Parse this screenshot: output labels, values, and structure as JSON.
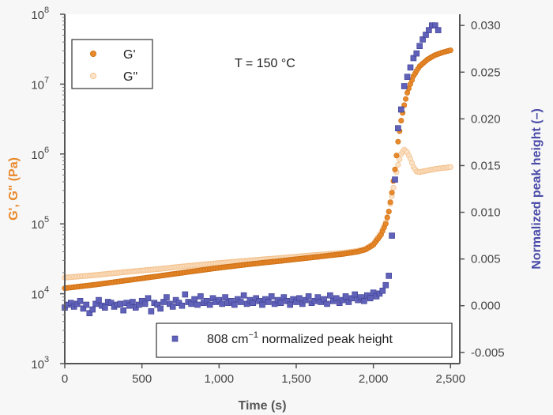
{
  "chart_data": {
    "type": "scatter",
    "title": "",
    "annotation": "T = 150 °C",
    "xlabel": "Time (s)",
    "ylabel_left": "G', G\" (Pa)",
    "ylabel_right": "Normalized peak height (–)",
    "xlim": [
      0,
      2560
    ],
    "xticks": [
      0,
      500,
      1000,
      1500,
      2000,
      2500
    ],
    "xtick_labels": [
      "0",
      "500",
      "1,000",
      "1,500",
      "2,000",
      "2,500"
    ],
    "ylim_left_log10": [
      3,
      8
    ],
    "yticks_left": [
      {
        "base": "10",
        "exp": "3"
      },
      {
        "base": "10",
        "exp": "4"
      },
      {
        "base": "10",
        "exp": "5"
      },
      {
        "base": "10",
        "exp": "6"
      },
      {
        "base": "10",
        "exp": "7"
      },
      {
        "base": "10",
        "exp": "8"
      }
    ],
    "ylim_right": [
      -0.0062,
      0.0312
    ],
    "yticks_right": [
      -0.005,
      0.0,
      0.005,
      0.01,
      0.015,
      0.02,
      0.025,
      0.03
    ],
    "ytick_labels_right": [
      "-0.005",
      "0.000",
      "0.005",
      "0.010",
      "0.015",
      "0.020",
      "0.025",
      "0.030"
    ],
    "colors": {
      "g_prime": "#e8892b",
      "g_double_prime": "#f3c08c",
      "peak": "#4a4ba8",
      "left_axis": "#e8892b",
      "right_axis": "#4a4ba8"
    },
    "legend_left": {
      "placement": "top-left",
      "entries": [
        "G'",
        "G\""
      ]
    },
    "legend_right": {
      "placement": "bottom-right",
      "label_main": "808 cm",
      "label_sup": "−1",
      "label_rest": " normalized peak height"
    },
    "series": [
      {
        "name": "G'",
        "axis": "left",
        "x": [
          0,
          200,
          400,
          600,
          800,
          1000,
          1200,
          1400,
          1600,
          1800,
          1900,
          1950,
          2000,
          2050,
          2080,
          2100,
          2120,
          2140,
          2160,
          2180,
          2200,
          2220,
          2240,
          2260,
          2280,
          2300,
          2350,
          2400,
          2450,
          2500
        ],
        "y": [
          12000,
          13500,
          15500,
          17800,
          20500,
          23500,
          26500,
          29500,
          33000,
          37000,
          40000,
          43000,
          50000,
          70000,
          100000,
          150000,
          280000,
          600000,
          1500000,
          3000000,
          5000000,
          7500000,
          10000000,
          13000000,
          15500000,
          18000000,
          22500000,
          26000000,
          28500000,
          30500000
        ]
      },
      {
        "name": "G\"",
        "axis": "left",
        "x": [
          0,
          200,
          400,
          600,
          800,
          1000,
          1200,
          1400,
          1600,
          1800,
          1900,
          1950,
          2000,
          2050,
          2080,
          2100,
          2120,
          2140,
          2160,
          2180,
          2200,
          2220,
          2240,
          2260,
          2280,
          2300,
          2350,
          2400,
          2450,
          2500
        ],
        "y": [
          17000,
          18500,
          20500,
          22500,
          25000,
          27500,
          30000,
          32500,
          35500,
          38500,
          41000,
          44000,
          52000,
          75000,
          105000,
          150000,
          250000,
          430000,
          700000,
          1000000,
          1150000,
          1050000,
          850000,
          650000,
          560000,
          550000,
          580000,
          610000,
          630000,
          650000
        ]
      },
      {
        "name": "808 cm-1 normalized peak height",
        "axis": "right",
        "x": [
          0,
          20,
          40,
          60,
          80,
          100,
          120,
          140,
          160,
          180,
          200,
          220,
          240,
          260,
          280,
          300,
          320,
          340,
          360,
          380,
          400,
          420,
          440,
          460,
          480,
          500,
          520,
          540,
          560,
          580,
          600,
          620,
          640,
          660,
          680,
          700,
          720,
          740,
          760,
          780,
          800,
          820,
          840,
          860,
          880,
          900,
          920,
          940,
          960,
          980,
          1000,
          1020,
          1040,
          1060,
          1080,
          1100,
          1120,
          1140,
          1160,
          1180,
          1200,
          1220,
          1240,
          1260,
          1280,
          1300,
          1320,
          1340,
          1360,
          1380,
          1400,
          1420,
          1440,
          1460,
          1480,
          1500,
          1520,
          1540,
          1560,
          1580,
          1600,
          1620,
          1640,
          1660,
          1680,
          1700,
          1720,
          1740,
          1760,
          1780,
          1800,
          1820,
          1840,
          1860,
          1880,
          1900,
          1920,
          1940,
          1960,
          1980,
          2000,
          2020,
          2040,
          2060,
          2080,
          2100,
          2120,
          2140,
          2160,
          2180,
          2200,
          2220,
          2240,
          2260,
          2280,
          2300,
          2320,
          2340,
          2360,
          2380,
          2400,
          2420
        ],
        "y": [
          -0.0002,
          0.0001,
          0.0003,
          -0.0001,
          0.0002,
          0.0005,
          -0.0003,
          0.0001,
          -0.0008,
          -0.0004,
          0.0002,
          0.0006,
          0.0,
          -0.0002,
          0.0004,
          0.0003,
          -0.0001,
          0.0001,
          0.0002,
          -0.0005,
          0.0003,
          0.0,
          0.0004,
          -0.0002,
          0.0001,
          0.0005,
          0.0002,
          0.0008,
          -0.0006,
          0.0003,
          0.0001,
          -0.0003,
          0.0004,
          0.0009,
          0.0002,
          -0.0001,
          0.0006,
          0.0003,
          0.0,
          0.0012,
          0.0004,
          0.0002,
          0.0007,
          0.0001,
          0.001,
          0.0003,
          0.0005,
          0.0001,
          0.0008,
          0.0004,
          0.0006,
          0.0002,
          0.0009,
          0.0003,
          0.0005,
          0.0001,
          0.0007,
          0.0004,
          0.0011,
          0.0002,
          0.0006,
          0.0003,
          0.0008,
          0.0005,
          0.0001,
          0.0007,
          0.0004,
          0.001,
          0.0002,
          0.0006,
          0.0003,
          0.0009,
          0.0005,
          0.0001,
          0.0007,
          0.0004,
          0.0008,
          0.0002,
          0.0006,
          0.001,
          0.0003,
          0.0005,
          0.0009,
          0.0004,
          0.0007,
          0.0002,
          0.0011,
          0.0005,
          0.0008,
          0.0003,
          0.0006,
          0.001,
          0.0004,
          0.0008,
          0.0012,
          0.0006,
          0.0009,
          0.0005,
          0.0011,
          0.0008,
          0.0014,
          0.001,
          0.0013,
          0.0016,
          0.0022,
          0.0032,
          0.0075,
          0.0135,
          0.019,
          0.021,
          0.0235,
          0.0245,
          0.0255,
          0.0265,
          0.027,
          0.0278,
          0.0285,
          0.029,
          0.0295,
          0.03,
          0.03,
          0.0295
        ]
      }
    ]
  }
}
